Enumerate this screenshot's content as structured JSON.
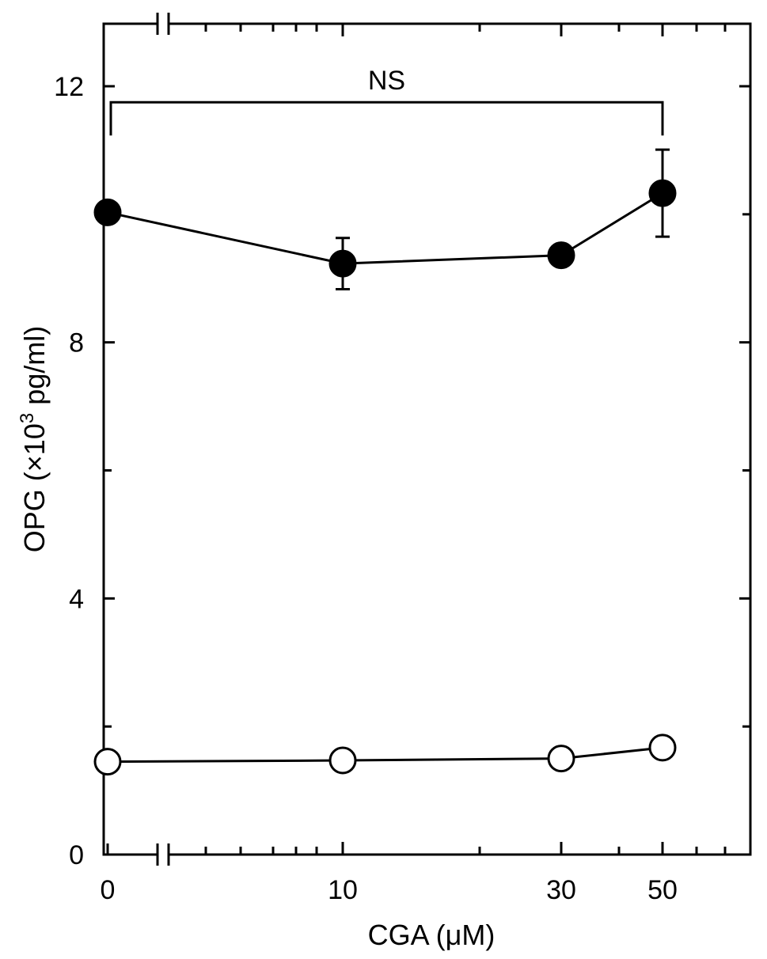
{
  "chart_data": {
    "type": "line",
    "x_tick_labels": [
      "0",
      "10",
      "30",
      "50"
    ],
    "x": [
      0,
      10,
      30,
      50
    ],
    "y_tick_labels": [
      "0",
      "4",
      "8",
      "12"
    ],
    "ylim": [
      0,
      12.8
    ],
    "xlabel": "CGA (μM)",
    "ylabel_main": "OPG (×10",
    "ylabel_sup": "3",
    "ylabel_end": " pg/ml)",
    "series": [
      {
        "fill": "#000000",
        "values": [
          10.03,
          9.23,
          9.36,
          10.33
        ],
        "error": [
          0,
          0.4,
          0,
          0.68
        ]
      },
      {
        "fill": "#ffffff",
        "values": [
          1.45,
          1.47,
          1.5,
          1.67
        ],
        "error": [
          0,
          0,
          0,
          0
        ]
      }
    ],
    "annotation": {
      "text": "NS",
      "from_index": 0,
      "to_index": 3,
      "y": 11.75
    },
    "axis_break": "x",
    "grid": false
  }
}
